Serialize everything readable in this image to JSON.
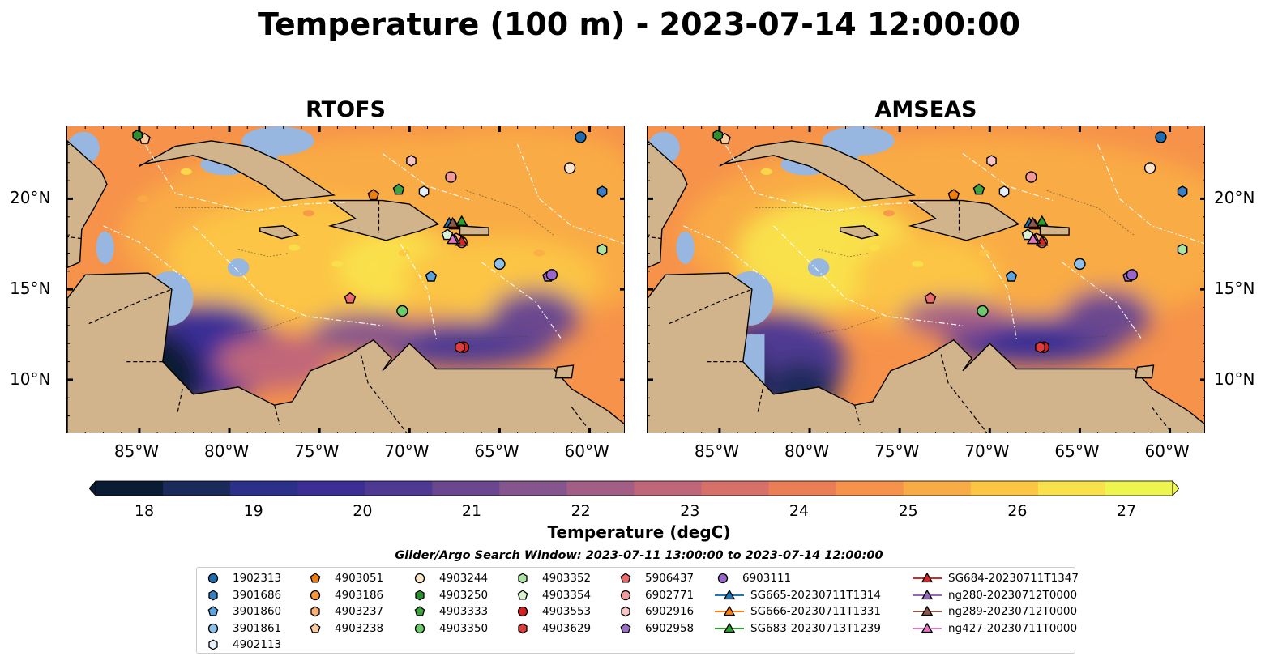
{
  "title": "Temperature (100 m) - 2023-07-14 12:00:00",
  "panels": [
    {
      "title": "RTOFS"
    },
    {
      "title": "AMSEAS"
    }
  ],
  "axes": {
    "longitude_ticks": [
      -85,
      -80,
      -75,
      -70,
      -65,
      -60
    ],
    "longitude_labels": [
      "85°W",
      "80°W",
      "75°W",
      "70°W",
      "65°W",
      "60°W"
    ],
    "latitude_ticks": [
      10,
      15,
      20
    ],
    "latitude_labels": [
      "10°N",
      "15°N",
      "20°N"
    ],
    "lon_range": [
      -89,
      -58
    ],
    "lat_range": [
      7,
      24
    ]
  },
  "colorbar": {
    "label": "Temperature (degC)",
    "min": 18,
    "max": 27,
    "ticks": [
      18,
      19,
      20,
      21,
      22,
      23,
      24,
      25,
      26,
      27
    ],
    "tick_labels": [
      "18",
      "19",
      "20",
      "21",
      "22",
      "23",
      "24",
      "25",
      "26",
      "27"
    ],
    "extend": "both",
    "colors": [
      "#0a1c33",
      "#1a2a5a",
      "#2b318b",
      "#3b2f96",
      "#4f3a93",
      "#6a478f",
      "#85558d",
      "#a35e86",
      "#c0667a",
      "#d8706a",
      "#ec7e55",
      "#f6924a",
      "#f9ab45",
      "#fcc544",
      "#f9e14b",
      "#eef54f"
    ],
    "land_color": "#d2b48c",
    "shelf_color": "#97b6e0"
  },
  "search_window": "Glider/Argo Search Window: 2023-07-11 13:00:00 to 2023-07-14 12:00:00",
  "legend": {
    "columns": [
      [
        {
          "label": "1902313",
          "marker": "circle",
          "color": "#1f6bb0"
        },
        {
          "label": "3901686",
          "marker": "hexagon",
          "color": "#3a7fc4"
        },
        {
          "label": "3901860",
          "marker": "pentagon",
          "color": "#5aa3df"
        },
        {
          "label": "3901861",
          "marker": "circle",
          "color": "#8ec0ea"
        },
        {
          "label": "4902113",
          "marker": "hexagon",
          "color": "#e4f0fb"
        }
      ],
      [
        {
          "label": "4903051",
          "marker": "pentagon",
          "color": "#f07d12"
        },
        {
          "label": "4903186",
          "marker": "circle",
          "color": "#f5953f"
        },
        {
          "label": "4903237",
          "marker": "hexagon",
          "color": "#f8b073"
        },
        {
          "label": "4903238",
          "marker": "pentagon",
          "color": "#fbcb9d"
        }
      ],
      [
        {
          "label": "4903244",
          "marker": "circle",
          "color": "#fde5cc"
        },
        {
          "label": "4903250",
          "marker": "hexagon",
          "color": "#2d8f2d"
        },
        {
          "label": "4903333",
          "marker": "pentagon",
          "color": "#3da33d"
        },
        {
          "label": "4903350",
          "marker": "circle",
          "color": "#6cc96c"
        }
      ],
      [
        {
          "label": "4903352",
          "marker": "hexagon",
          "color": "#a9e4a0"
        },
        {
          "label": "4903354",
          "marker": "pentagon",
          "color": "#d9f3d2"
        },
        {
          "label": "4903553",
          "marker": "circle",
          "color": "#d62020"
        },
        {
          "label": "4903629",
          "marker": "hexagon",
          "color": "#e23b3b"
        }
      ],
      [
        {
          "label": "5906437",
          "marker": "pentagon",
          "color": "#ea6a6a"
        },
        {
          "label": "6902771",
          "marker": "circle",
          "color": "#f29a9a"
        },
        {
          "label": "6902916",
          "marker": "hexagon",
          "color": "#f8c4c4"
        },
        {
          "label": "6902958",
          "marker": "pentagon",
          "color": "#9b6fc8"
        }
      ],
      [
        {
          "label": "6903111",
          "marker": "circle",
          "color": "#9966cc"
        },
        {
          "label": "SG665-20230711T1314",
          "marker": "triangle-line",
          "color": "#1f77b4"
        },
        {
          "label": "SG666-20230711T1331",
          "marker": "triangle-line",
          "color": "#ff7f0e"
        },
        {
          "label": "SG683-20230713T1239",
          "marker": "triangle-line",
          "color": "#2ca02c"
        }
      ],
      [
        {
          "label": "SG684-20230711T1347",
          "marker": "triangle-line",
          "color": "#d62728"
        },
        {
          "label": "ng280-20230712T0000",
          "marker": "triangle-line",
          "color": "#9467bd"
        },
        {
          "label": "ng289-20230712T0000",
          "marker": "triangle-line",
          "color": "#8c564b"
        },
        {
          "label": "ng427-20230711T0000",
          "marker": "triangle-line",
          "color": "#e377c2"
        }
      ]
    ]
  },
  "platforms": [
    {
      "id": "1902313",
      "lon": -60.5,
      "lat": 23.4
    },
    {
      "id": "3901686",
      "lon": -59.3,
      "lat": 20.4
    },
    {
      "id": "3901860",
      "lon": -68.8,
      "lat": 15.7
    },
    {
      "id": "3901861",
      "lon": -65.0,
      "lat": 16.4
    },
    {
      "id": "4902113",
      "lon": -69.2,
      "lat": 20.4
    },
    {
      "id": "4903051",
      "lon": -72.0,
      "lat": 20.2
    },
    {
      "id": "4903186",
      "lon": -67.1,
      "lat": 17.6
    },
    {
      "id": "4903237",
      "lon": -67.4,
      "lat": 17.8
    },
    {
      "id": "4903238",
      "lon": -84.7,
      "lat": 23.3
    },
    {
      "id": "4903244",
      "lon": -61.1,
      "lat": 21.7
    },
    {
      "id": "4903250",
      "lon": -85.1,
      "lat": 23.5
    },
    {
      "id": "4903333",
      "lon": -70.6,
      "lat": 20.5
    },
    {
      "id": "4903350",
      "lon": -70.4,
      "lat": 13.8
    },
    {
      "id": "4903352",
      "lon": -59.3,
      "lat": 17.2
    },
    {
      "id": "4903354",
      "lon": -67.9,
      "lat": 18.0
    },
    {
      "id": "4903553",
      "lon": -67.0,
      "lat": 11.8
    },
    {
      "id": "4903629",
      "lon": -67.2,
      "lat": 11.8
    },
    {
      "id": "5906437",
      "lon": -73.3,
      "lat": 14.5
    },
    {
      "id": "6902771",
      "lon": -67.7,
      "lat": 21.2
    },
    {
      "id": "6902916",
      "lon": -69.9,
      "lat": 22.1
    },
    {
      "id": "6902958",
      "lon": -62.3,
      "lat": 15.7
    },
    {
      "id": "6903111",
      "lon": -62.1,
      "lat": 15.8
    },
    {
      "id": "SG665-20230711T1314",
      "lon": -67.8,
      "lat": 18.6
    },
    {
      "id": "SG666-20230711T1331",
      "lon": -67.5,
      "lat": 18.5
    },
    {
      "id": "SG683-20230713T1239",
      "lon": -67.1,
      "lat": 18.7
    },
    {
      "id": "SG684-20230711T1347",
      "lon": -67.1,
      "lat": 17.6
    },
    {
      "id": "ng280-20230712T0000",
      "lon": -67.5,
      "lat": 17.7
    },
    {
      "id": "ng289-20230712T0000",
      "lon": -67.6,
      "lat": 18.6
    },
    {
      "id": "ng427-20230711T0000",
      "lon": -67.6,
      "lat": 17.7
    }
  ]
}
